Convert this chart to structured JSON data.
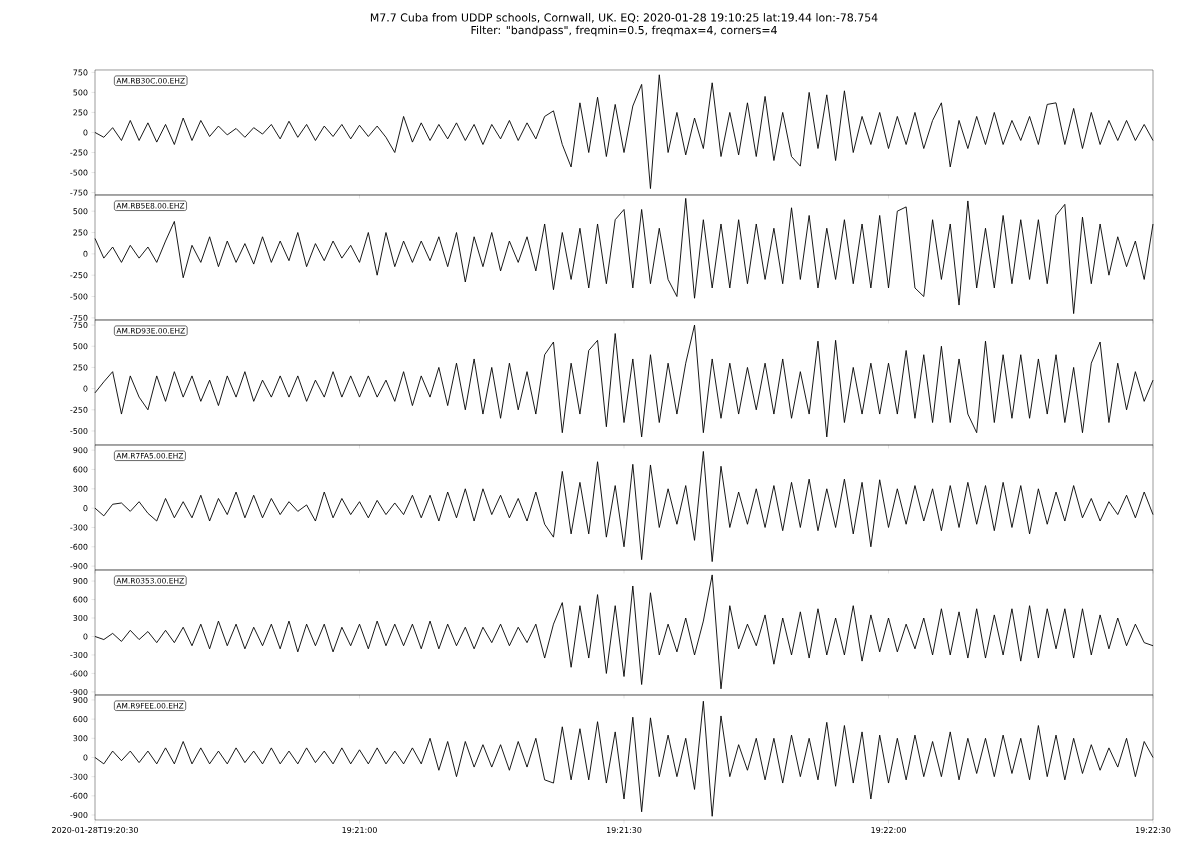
{
  "chart_data": [
    {
      "type": "line",
      "title": "M7.7 Cuba from UDDP schools, Cornwall, UK. EQ: 2020-01-28 19:10:25 lat:19.44 lon:-78.754",
      "subtitle": "Filter: \"bandpass\", freqmin=0.5, freqmax=4, corners=4",
      "annotations": [
        "AM.RB30C.00.EHZ"
      ],
      "color": "#000000",
      "tick_labels": "y",
      "x": [
        "2020-01-28T19:20:30",
        "2020-01-28T19:20:31",
        "2020-01-28T19:20:32",
        "2020-01-28T19:20:33",
        "2020-01-28T19:20:34",
        "2020-01-28T19:20:35",
        "2020-01-28T19:20:36",
        "2020-01-28T19:20:37",
        "2020-01-28T19:20:38",
        "2020-01-28T19:20:39",
        "2020-01-28T19:20:40",
        "2020-01-28T19:20:41",
        "2020-01-28T19:20:42",
        "2020-01-28T19:20:43",
        "2020-01-28T19:20:44",
        "2020-01-28T19:20:45",
        "2020-01-28T19:20:46",
        "2020-01-28T19:20:47",
        "2020-01-28T19:20:48",
        "2020-01-28T19:20:49",
        "2020-01-28T19:20:50",
        "2020-01-28T19:20:51",
        "2020-01-28T19:20:52",
        "2020-01-28T19:20:53",
        "2020-01-28T19:20:54",
        "2020-01-28T19:20:55",
        "2020-01-28T19:20:56",
        "2020-01-28T19:20:57",
        "2020-01-28T19:20:58",
        "2020-01-28T19:20:59",
        "2020-01-28T19:21:00",
        "2020-01-28T19:21:01",
        "2020-01-28T19:21:02",
        "2020-01-28T19:21:03",
        "2020-01-28T19:21:04",
        "2020-01-28T19:21:05",
        "2020-01-28T19:21:06",
        "2020-01-28T19:21:07",
        "2020-01-28T19:21:08",
        "2020-01-28T19:21:09",
        "2020-01-28T19:21:10",
        "2020-01-28T19:21:11",
        "2020-01-28T19:21:12",
        "2020-01-28T19:21:13",
        "2020-01-28T19:21:14",
        "2020-01-28T19:21:15",
        "2020-01-28T19:21:16",
        "2020-01-28T19:21:17",
        "2020-01-28T19:21:18",
        "2020-01-28T19:21:19",
        "2020-01-28T19:21:20",
        "2020-01-28T19:21:21",
        "2020-01-28T19:21:22",
        "2020-01-28T19:21:23",
        "2020-01-28T19:21:24",
        "2020-01-28T19:21:25",
        "2020-01-28T19:21:26",
        "2020-01-28T19:21:27",
        "2020-01-28T19:21:28",
        "2020-01-28T19:21:29",
        "2020-01-28T19:21:30",
        "2020-01-28T19:21:31",
        "2020-01-28T19:21:32",
        "2020-01-28T19:21:33",
        "2020-01-28T19:21:34",
        "2020-01-28T19:21:35",
        "2020-01-28T19:21:36",
        "2020-01-28T19:21:37",
        "2020-01-28T19:21:38",
        "2020-01-28T19:21:39",
        "2020-01-28T19:21:40",
        "2020-01-28T19:21:41",
        "2020-01-28T19:21:42",
        "2020-01-28T19:21:43",
        "2020-01-28T19:21:44",
        "2020-01-28T19:21:45",
        "2020-01-28T19:21:46",
        "2020-01-28T19:21:47",
        "2020-01-28T19:21:48",
        "2020-01-28T19:21:49",
        "2020-01-28T19:21:50",
        "2020-01-28T19:21:51",
        "2020-01-28T19:21:52",
        "2020-01-28T19:21:53",
        "2020-01-28T19:21:54",
        "2020-01-28T19:21:55",
        "2020-01-28T19:21:56",
        "2020-01-28T19:21:57",
        "2020-01-28T19:21:58",
        "2020-01-28T19:21:59",
        "2020-01-28T19:22:00",
        "2020-01-28T19:22:01",
        "2020-01-28T19:22:02",
        "2020-01-28T19:22:03",
        "2020-01-28T19:22:04",
        "2020-01-28T19:22:05",
        "2020-01-28T19:22:06",
        "2020-01-28T19:22:07",
        "2020-01-28T19:22:08",
        "2020-01-28T19:22:09",
        "2020-01-28T19:22:10",
        "2020-01-28T19:22:11",
        "2020-01-28T19:22:12",
        "2020-01-28T19:22:13",
        "2020-01-28T19:22:14",
        "2020-01-28T19:22:15",
        "2020-01-28T19:22:16",
        "2020-01-28T19:22:17",
        "2020-01-28T19:22:18",
        "2020-01-28T19:22:19",
        "2020-01-28T19:22:20",
        "2020-01-28T19:22:21",
        "2020-01-28T19:22:22",
        "2020-01-28T19:22:23",
        "2020-01-28T19:22:24",
        "2020-01-28T19:22:25",
        "2020-01-28T19:22:26",
        "2020-01-28T19:22:27",
        "2020-01-28T19:22:28",
        "2020-01-28T19:22:29",
        "2020-01-28T19:22:30"
      ],
      "values": [
        0,
        -60,
        60,
        -100,
        150,
        -100,
        120,
        -120,
        100,
        -150,
        180,
        -100,
        150,
        -50,
        80,
        -30,
        50,
        -60,
        60,
        -20,
        100,
        -80,
        140,
        -60,
        100,
        -100,
        80,
        -50,
        100,
        -80,
        90,
        -50,
        80,
        -60,
        -250,
        200,
        -120,
        120,
        -100,
        100,
        -80,
        120,
        -100,
        100,
        -150,
        100,
        -80,
        150,
        -100,
        120,
        -80,
        200,
        270,
        -150,
        -430,
        370,
        -250,
        440,
        -300,
        350,
        -250,
        330,
        600,
        -700,
        720,
        -250,
        250,
        -280,
        180,
        -200,
        620,
        -300,
        250,
        -280,
        370,
        -300,
        450,
        -350,
        250,
        -300,
        -420,
        500,
        -200,
        470,
        -350,
        520,
        -250,
        200,
        -150,
        250,
        -200,
        200,
        -150,
        250,
        -200,
        150,
        370,
        -430,
        150,
        -200,
        200,
        -150,
        250,
        -150,
        150,
        -100,
        200,
        -150,
        350,
        370,
        -150,
        300,
        -200,
        250,
        -150,
        150,
        -100,
        150,
        -100,
        100,
        -100
      ],
      "xlim": [
        "2020-01-28T19:20:30",
        "2020-01-28T19:22:30"
      ],
      "xticks": [
        "2020-01-28T19:20:30",
        "2020-01-28T19:21:00",
        "2020-01-28T19:21:30",
        "2020-01-28T19:22:00",
        "2020-01-28T19:22:30"
      ],
      "ylim": [
        -780,
        780
      ],
      "yticks": [
        -750,
        -500,
        -250,
        0,
        250,
        500,
        750
      ]
    },
    {
      "type": "line",
      "annotations": [
        "AM.RB5E8.00.EHZ"
      ],
      "color": "#000000",
      "tick_labels": "y",
      "x": [
        "2020-01-28T19:20:30",
        "2020-01-28T19:20:31",
        "2020-01-28T19:20:32",
        "2020-01-28T19:20:33",
        "2020-01-28T19:20:34",
        "2020-01-28T19:20:35",
        "2020-01-28T19:20:36",
        "2020-01-28T19:20:37",
        "2020-01-28T19:20:38",
        "2020-01-28T19:20:39",
        "2020-01-28T19:20:40",
        "2020-01-28T19:20:41",
        "2020-01-28T19:20:42",
        "2020-01-28T19:20:43",
        "2020-01-28T19:20:44",
        "2020-01-28T19:20:45",
        "2020-01-28T19:20:46",
        "2020-01-28T19:20:47",
        "2020-01-28T19:20:48",
        "2020-01-28T19:20:49",
        "2020-01-28T19:20:50",
        "2020-01-28T19:20:51",
        "2020-01-28T19:20:52",
        "2020-01-28T19:20:53",
        "2020-01-28T19:20:54",
        "2020-01-28T19:20:55",
        "2020-01-28T19:20:56",
        "2020-01-28T19:20:57",
        "2020-01-28T19:20:58",
        "2020-01-28T19:20:59",
        "2020-01-28T19:21:00",
        "2020-01-28T19:21:01",
        "2020-01-28T19:21:02",
        "2020-01-28T19:21:03",
        "2020-01-28T19:21:04",
        "2020-01-28T19:21:05",
        "2020-01-28T19:21:06",
        "2020-01-28T19:21:07",
        "2020-01-28T19:21:08",
        "2020-01-28T19:21:09",
        "2020-01-28T19:21:10",
        "2020-01-28T19:21:11",
        "2020-01-28T19:21:12",
        "2020-01-28T19:21:13",
        "2020-01-28T19:21:14",
        "2020-01-28T19:21:15",
        "2020-01-28T19:21:16",
        "2020-01-28T19:21:17",
        "2020-01-28T19:21:18",
        "2020-01-28T19:21:19",
        "2020-01-28T19:21:20",
        "2020-01-28T19:21:21",
        "2020-01-28T19:21:22",
        "2020-01-28T19:21:23",
        "2020-01-28T19:21:24",
        "2020-01-28T19:21:25",
        "2020-01-28T19:21:26",
        "2020-01-28T19:21:27",
        "2020-01-28T19:21:28",
        "2020-01-28T19:21:29",
        "2020-01-28T19:21:30",
        "2020-01-28T19:21:31",
        "2020-01-28T19:21:32",
        "2020-01-28T19:21:33",
        "2020-01-28T19:21:34",
        "2020-01-28T19:21:35",
        "2020-01-28T19:21:36",
        "2020-01-28T19:21:37",
        "2020-01-28T19:21:38",
        "2020-01-28T19:21:39",
        "2020-01-28T19:21:40",
        "2020-01-28T19:21:41",
        "2020-01-28T19:21:42",
        "2020-01-28T19:21:43",
        "2020-01-28T19:21:44",
        "2020-01-28T19:21:45",
        "2020-01-28T19:21:46",
        "2020-01-28T19:21:47",
        "2020-01-28T19:21:48",
        "2020-01-28T19:21:49",
        "2020-01-28T19:21:50",
        "2020-01-28T19:21:51",
        "2020-01-28T19:21:52",
        "2020-01-28T19:21:53",
        "2020-01-28T19:21:54",
        "2020-01-28T19:21:55",
        "2020-01-28T19:21:56",
        "2020-01-28T19:21:57",
        "2020-01-28T19:21:58",
        "2020-01-28T19:21:59",
        "2020-01-28T19:22:00",
        "2020-01-28T19:22:01",
        "2020-01-28T19:22:02",
        "2020-01-28T19:22:03",
        "2020-01-28T19:22:04",
        "2020-01-28T19:22:05",
        "2020-01-28T19:22:06",
        "2020-01-28T19:22:07",
        "2020-01-28T19:22:08",
        "2020-01-28T19:22:09",
        "2020-01-28T19:22:10",
        "2020-01-28T19:22:11",
        "2020-01-28T19:22:12",
        "2020-01-28T19:22:13",
        "2020-01-28T19:22:14",
        "2020-01-28T19:22:15",
        "2020-01-28T19:22:16",
        "2020-01-28T19:22:17",
        "2020-01-28T19:22:18",
        "2020-01-28T19:22:19",
        "2020-01-28T19:22:20",
        "2020-01-28T19:22:21",
        "2020-01-28T19:22:22",
        "2020-01-28T19:22:23",
        "2020-01-28T19:22:24",
        "2020-01-28T19:22:25",
        "2020-01-28T19:22:26",
        "2020-01-28T19:22:27",
        "2020-01-28T19:22:28",
        "2020-01-28T19:22:29",
        "2020-01-28T19:22:30"
      ],
      "values": [
        180,
        -50,
        80,
        -100,
        100,
        -50,
        80,
        -100,
        150,
        380,
        -280,
        100,
        -100,
        200,
        -150,
        150,
        -100,
        120,
        -120,
        200,
        -100,
        150,
        -80,
        250,
        -150,
        120,
        -80,
        150,
        -50,
        100,
        -100,
        250,
        -250,
        250,
        -150,
        150,
        -100,
        150,
        -80,
        200,
        -150,
        250,
        -330,
        200,
        -150,
        250,
        -200,
        150,
        -100,
        200,
        -200,
        350,
        -420,
        250,
        -300,
        300,
        -400,
        350,
        -350,
        400,
        520,
        -400,
        520,
        -350,
        300,
        -300,
        -500,
        650,
        -520,
        400,
        -400,
        350,
        -400,
        400,
        -350,
        350,
        -300,
        300,
        -350,
        540,
        -300,
        450,
        -400,
        300,
        -300,
        400,
        -350,
        350,
        -400,
        450,
        -400,
        500,
        550,
        -400,
        -500,
        400,
        -300,
        350,
        -600,
        620,
        -400,
        300,
        -400,
        450,
        -350,
        400,
        -300,
        400,
        -350,
        450,
        580,
        -700,
        430,
        -350,
        350,
        -250,
        200,
        -150,
        150,
        -300,
        350
      ],
      "xlim": [
        "2020-01-28T19:20:30",
        "2020-01-28T19:22:30"
      ],
      "xticks": [
        "2020-01-28T19:20:30",
        "2020-01-28T19:21:00",
        "2020-01-28T19:21:30",
        "2020-01-28T19:22:00",
        "2020-01-28T19:22:30"
      ],
      "ylim": [
        -775,
        690
      ],
      "yticks": [
        -750,
        -500,
        -250,
        0,
        250,
        500
      ]
    },
    {
      "type": "line",
      "annotations": [
        "AM.RD93E.00.EHZ"
      ],
      "color": "#000000",
      "tick_labels": "y",
      "x": [
        "2020-01-28T19:20:30",
        "2020-01-28T19:20:31",
        "2020-01-28T19:20:32",
        "2020-01-28T19:20:33",
        "2020-01-28T19:20:34",
        "2020-01-28T19:20:35",
        "2020-01-28T19:20:36",
        "2020-01-28T19:20:37",
        "2020-01-28T19:20:38",
        "2020-01-28T19:20:39",
        "2020-01-28T19:20:40",
        "2020-01-28T19:20:41",
        "2020-01-28T19:20:42",
        "2020-01-28T19:20:43",
        "2020-01-28T19:20:44",
        "2020-01-28T19:20:45",
        "2020-01-28T19:20:46",
        "2020-01-28T19:20:47",
        "2020-01-28T19:20:48",
        "2020-01-28T19:20:49",
        "2020-01-28T19:20:50",
        "2020-01-28T19:20:51",
        "2020-01-28T19:20:52",
        "2020-01-28T19:20:53",
        "2020-01-28T19:20:54",
        "2020-01-28T19:20:55",
        "2020-01-28T19:20:56",
        "2020-01-28T19:20:57",
        "2020-01-28T19:20:58",
        "2020-01-28T19:20:59",
        "2020-01-28T19:21:00",
        "2020-01-28T19:21:01",
        "2020-01-28T19:21:02",
        "2020-01-28T19:21:03",
        "2020-01-28T19:21:04",
        "2020-01-28T19:21:05",
        "2020-01-28T19:21:06",
        "2020-01-28T19:21:07",
        "2020-01-28T19:21:08",
        "2020-01-28T19:21:09",
        "2020-01-28T19:21:10",
        "2020-01-28T19:21:11",
        "2020-01-28T19:21:12",
        "2020-01-28T19:21:13",
        "2020-01-28T19:21:14",
        "2020-01-28T19:21:15",
        "2020-01-28T19:21:16",
        "2020-01-28T19:21:17",
        "2020-01-28T19:21:18",
        "2020-01-28T19:21:19",
        "2020-01-28T19:21:20",
        "2020-01-28T19:21:21",
        "2020-01-28T19:21:22",
        "2020-01-28T19:21:23",
        "2020-01-28T19:21:24",
        "2020-01-28T19:21:25",
        "2020-01-28T19:21:26",
        "2020-01-28T19:21:27",
        "2020-01-28T19:21:28",
        "2020-01-28T19:21:29",
        "2020-01-28T19:21:30",
        "2020-01-28T19:21:31",
        "2020-01-28T19:21:32",
        "2020-01-28T19:21:33",
        "2020-01-28T19:21:34",
        "2020-01-28T19:21:35",
        "2020-01-28T19:21:36",
        "2020-01-28T19:21:37",
        "2020-01-28T19:21:38",
        "2020-01-28T19:21:39",
        "2020-01-28T19:21:40",
        "2020-01-28T19:21:41",
        "2020-01-28T19:21:42",
        "2020-01-28T19:21:43",
        "2020-01-28T19:21:44",
        "2020-01-28T19:21:45",
        "2020-01-28T19:21:46",
        "2020-01-28T19:21:47",
        "2020-01-28T19:21:48",
        "2020-01-28T19:21:49",
        "2020-01-28T19:21:50",
        "2020-01-28T19:21:51",
        "2020-01-28T19:21:52",
        "2020-01-28T19:21:53",
        "2020-01-28T19:21:54",
        "2020-01-28T19:21:55",
        "2020-01-28T19:21:56",
        "2020-01-28T19:21:57",
        "2020-01-28T19:21:58",
        "2020-01-28T19:21:59",
        "2020-01-28T19:22:00",
        "2020-01-28T19:22:01",
        "2020-01-28T19:22:02",
        "2020-01-28T19:22:03",
        "2020-01-28T19:22:04",
        "2020-01-28T19:22:05",
        "2020-01-28T19:22:06",
        "2020-01-28T19:22:07",
        "2020-01-28T19:22:08",
        "2020-01-28T19:22:09",
        "2020-01-28T19:22:10",
        "2020-01-28T19:22:11",
        "2020-01-28T19:22:12",
        "2020-01-28T19:22:13",
        "2020-01-28T19:22:14",
        "2020-01-28T19:22:15",
        "2020-01-28T19:22:16",
        "2020-01-28T19:22:17",
        "2020-01-28T19:22:18",
        "2020-01-28T19:22:19",
        "2020-01-28T19:22:20",
        "2020-01-28T19:22:21",
        "2020-01-28T19:22:22",
        "2020-01-28T19:22:23",
        "2020-01-28T19:22:24",
        "2020-01-28T19:22:25",
        "2020-01-28T19:22:26",
        "2020-01-28T19:22:27",
        "2020-01-28T19:22:28",
        "2020-01-28T19:22:29",
        "2020-01-28T19:22:30"
      ],
      "values": [
        -50,
        80,
        200,
        -300,
        150,
        -100,
        -250,
        150,
        -150,
        200,
        -100,
        150,
        -150,
        100,
        -200,
        150,
        -100,
        200,
        -150,
        100,
        -100,
        150,
        -100,
        150,
        -150,
        100,
        -100,
        200,
        -100,
        150,
        -100,
        150,
        -100,
        100,
        -150,
        200,
        -200,
        150,
        -100,
        250,
        -200,
        300,
        -250,
        350,
        -300,
        250,
        -350,
        300,
        -250,
        200,
        -300,
        400,
        550,
        -520,
        300,
        -300,
        450,
        570,
        -450,
        650,
        -400,
        350,
        -570,
        400,
        -400,
        300,
        -300,
        300,
        750,
        -520,
        350,
        -350,
        300,
        -300,
        250,
        -250,
        300,
        -300,
        350,
        -350,
        200,
        -300,
        560,
        -570,
        570,
        -400,
        250,
        -300,
        300,
        -300,
        300,
        -300,
        450,
        -350,
        400,
        -400,
        500,
        -400,
        350,
        -300,
        -520,
        560,
        -400,
        400,
        -350,
        400,
        -350,
        350,
        -300,
        400,
        -400,
        250,
        -520,
        300,
        550,
        -400,
        300,
        -250,
        200,
        -150,
        100
      ],
      "xlim": [
        "2020-01-28T19:20:30",
        "2020-01-28T19:22:30"
      ],
      "xticks": [
        "2020-01-28T19:20:30",
        "2020-01-28T19:21:00",
        "2020-01-28T19:21:30",
        "2020-01-28T19:22:00",
        "2020-01-28T19:22:30"
      ],
      "ylim": [
        -665,
        810
      ],
      "yticks": [
        -500,
        -250,
        0,
        250,
        500,
        750
      ]
    },
    {
      "type": "line",
      "annotations": [
        "AM.R7FA5.00.EHZ"
      ],
      "color": "#000000",
      "tick_labels": "y",
      "x": [
        "2020-01-28T19:20:30",
        "2020-01-28T19:20:31",
        "2020-01-28T19:20:32",
        "2020-01-28T19:20:33",
        "2020-01-28T19:20:34",
        "2020-01-28T19:20:35",
        "2020-01-28T19:20:36",
        "2020-01-28T19:20:37",
        "2020-01-28T19:20:38",
        "2020-01-28T19:20:39",
        "2020-01-28T19:20:40",
        "2020-01-28T19:20:41",
        "2020-01-28T19:20:42",
        "2020-01-28T19:20:43",
        "2020-01-28T19:20:44",
        "2020-01-28T19:20:45",
        "2020-01-28T19:20:46",
        "2020-01-28T19:20:47",
        "2020-01-28T19:20:48",
        "2020-01-28T19:20:49",
        "2020-01-28T19:20:50",
        "2020-01-28T19:20:51",
        "2020-01-28T19:20:52",
        "2020-01-28T19:20:53",
        "2020-01-28T19:20:54",
        "2020-01-28T19:20:55",
        "2020-01-28T19:20:56",
        "2020-01-28T19:20:57",
        "2020-01-28T19:20:58",
        "2020-01-28T19:20:59",
        "2020-01-28T19:21:00",
        "2020-01-28T19:21:01",
        "2020-01-28T19:21:02",
        "2020-01-28T19:21:03",
        "2020-01-28T19:21:04",
        "2020-01-28T19:21:05",
        "2020-01-28T19:21:06",
        "2020-01-28T19:21:07",
        "2020-01-28T19:21:08",
        "2020-01-28T19:21:09",
        "2020-01-28T19:21:10",
        "2020-01-28T19:21:11",
        "2020-01-28T19:21:12",
        "2020-01-28T19:21:13",
        "2020-01-28T19:21:14",
        "2020-01-28T19:21:15",
        "2020-01-28T19:21:16",
        "2020-01-28T19:21:17",
        "2020-01-28T19:21:18",
        "2020-01-28T19:21:19",
        "2020-01-28T19:21:20",
        "2020-01-28T19:21:21",
        "2020-01-28T19:21:22",
        "2020-01-28T19:21:23",
        "2020-01-28T19:21:24",
        "2020-01-28T19:21:25",
        "2020-01-28T19:21:26",
        "2020-01-28T19:21:27",
        "2020-01-28T19:21:28",
        "2020-01-28T19:21:29",
        "2020-01-28T19:21:30",
        "2020-01-28T19:21:31",
        "2020-01-28T19:21:32",
        "2020-01-28T19:21:33",
        "2020-01-28T19:21:34",
        "2020-01-28T19:21:35",
        "2020-01-28T19:21:36",
        "2020-01-28T19:21:37",
        "2020-01-28T19:21:38",
        "2020-01-28T19:21:39",
        "2020-01-28T19:21:40",
        "2020-01-28T19:21:41",
        "2020-01-28T19:21:42",
        "2020-01-28T19:21:43",
        "2020-01-28T19:21:44",
        "2020-01-28T19:21:45",
        "2020-01-28T19:21:46",
        "2020-01-28T19:21:47",
        "2020-01-28T19:21:48",
        "2020-01-28T19:21:49",
        "2020-01-28T19:21:50",
        "2020-01-28T19:21:51",
        "2020-01-28T19:21:52",
        "2020-01-28T19:21:53",
        "2020-01-28T19:21:54",
        "2020-01-28T19:21:55",
        "2020-01-28T19:21:56",
        "2020-01-28T19:21:57",
        "2020-01-28T19:21:58",
        "2020-01-28T19:21:59",
        "2020-01-28T19:22:00",
        "2020-01-28T19:22:01",
        "2020-01-28T19:22:02",
        "2020-01-28T19:22:03",
        "2020-01-28T19:22:04",
        "2020-01-28T19:22:05",
        "2020-01-28T19:22:06",
        "2020-01-28T19:22:07",
        "2020-01-28T19:22:08",
        "2020-01-28T19:22:09",
        "2020-01-28T19:22:10",
        "2020-01-28T19:22:11",
        "2020-01-28T19:22:12",
        "2020-01-28T19:22:13",
        "2020-01-28T19:22:14",
        "2020-01-28T19:22:15",
        "2020-01-28T19:22:16",
        "2020-01-28T19:22:17",
        "2020-01-28T19:22:18",
        "2020-01-28T19:22:19",
        "2020-01-28T19:22:20",
        "2020-01-28T19:22:21",
        "2020-01-28T19:22:22",
        "2020-01-28T19:22:23",
        "2020-01-28T19:22:24",
        "2020-01-28T19:22:25",
        "2020-01-28T19:22:26",
        "2020-01-28T19:22:27",
        "2020-01-28T19:22:28",
        "2020-01-28T19:22:29",
        "2020-01-28T19:22:30"
      ],
      "values": [
        0,
        -120,
        60,
        80,
        -50,
        100,
        -80,
        -200,
        150,
        -150,
        100,
        -150,
        200,
        -200,
        150,
        -100,
        250,
        -150,
        200,
        -150,
        150,
        -100,
        100,
        -50,
        50,
        -200,
        250,
        -150,
        150,
        -100,
        100,
        -150,
        120,
        -100,
        80,
        -100,
        200,
        -150,
        200,
        -200,
        250,
        -150,
        300,
        -200,
        300,
        -100,
        200,
        -150,
        150,
        -200,
        250,
        -250,
        -450,
        570,
        -400,
        400,
        -400,
        720,
        -450,
        350,
        -600,
        680,
        -800,
        670,
        -300,
        300,
        -250,
        350,
        -500,
        880,
        -830,
        650,
        -300,
        250,
        -250,
        300,
        -300,
        350,
        -350,
        400,
        -300,
        450,
        -350,
        300,
        -300,
        450,
        -400,
        400,
        -600,
        440,
        -300,
        300,
        -250,
        350,
        -200,
        300,
        -350,
        350,
        -300,
        400,
        -250,
        350,
        -350,
        400,
        -300,
        350,
        -400,
        300,
        -250,
        250,
        -200,
        350,
        -150,
        150,
        -200,
        100,
        -100,
        200,
        -150,
        250,
        -100
      ],
      "xlim": [
        "2020-01-28T19:20:30",
        "2020-01-28T19:22:30"
      ],
      "xticks": [
        "2020-01-28T19:20:30",
        "2020-01-28T19:21:00",
        "2020-01-28T19:21:30",
        "2020-01-28T19:22:00",
        "2020-01-28T19:22:30"
      ],
      "ylim": [
        -960,
        980
      ],
      "yticks": [
        -900,
        -600,
        -300,
        0,
        300,
        600,
        900
      ]
    },
    {
      "type": "line",
      "annotations": [
        "AM.R0353.00.EHZ"
      ],
      "color": "#000000",
      "tick_labels": "y",
      "x": [
        "2020-01-28T19:20:30",
        "2020-01-28T19:20:31",
        "2020-01-28T19:20:32",
        "2020-01-28T19:20:33",
        "2020-01-28T19:20:34",
        "2020-01-28T19:20:35",
        "2020-01-28T19:20:36",
        "2020-01-28T19:20:37",
        "2020-01-28T19:20:38",
        "2020-01-28T19:20:39",
        "2020-01-28T19:20:40",
        "2020-01-28T19:20:41",
        "2020-01-28T19:20:42",
        "2020-01-28T19:20:43",
        "2020-01-28T19:20:44",
        "2020-01-28T19:20:45",
        "2020-01-28T19:20:46",
        "2020-01-28T19:20:47",
        "2020-01-28T19:20:48",
        "2020-01-28T19:20:49",
        "2020-01-28T19:20:50",
        "2020-01-28T19:20:51",
        "2020-01-28T19:20:52",
        "2020-01-28T19:20:53",
        "2020-01-28T19:20:54",
        "2020-01-28T19:20:55",
        "2020-01-28T19:20:56",
        "2020-01-28T19:20:57",
        "2020-01-28T19:20:58",
        "2020-01-28T19:20:59",
        "2020-01-28T19:21:00",
        "2020-01-28T19:21:01",
        "2020-01-28T19:21:02",
        "2020-01-28T19:21:03",
        "2020-01-28T19:21:04",
        "2020-01-28T19:21:05",
        "2020-01-28T19:21:06",
        "2020-01-28T19:21:07",
        "2020-01-28T19:21:08",
        "2020-01-28T19:21:09",
        "2020-01-28T19:21:10",
        "2020-01-28T19:21:11",
        "2020-01-28T19:21:12",
        "2020-01-28T19:21:13",
        "2020-01-28T19:21:14",
        "2020-01-28T19:21:15",
        "2020-01-28T19:21:16",
        "2020-01-28T19:21:17",
        "2020-01-28T19:21:18",
        "2020-01-28T19:21:19",
        "2020-01-28T19:21:20",
        "2020-01-28T19:21:21",
        "2020-01-28T19:21:22",
        "2020-01-28T19:21:23",
        "2020-01-28T19:21:24",
        "2020-01-28T19:21:25",
        "2020-01-28T19:21:26",
        "2020-01-28T19:21:27",
        "2020-01-28T19:21:28",
        "2020-01-28T19:21:29",
        "2020-01-28T19:21:30",
        "2020-01-28T19:21:31",
        "2020-01-28T19:21:32",
        "2020-01-28T19:21:33",
        "2020-01-28T19:21:34",
        "2020-01-28T19:21:35",
        "2020-01-28T19:21:36",
        "2020-01-28T19:21:37",
        "2020-01-28T19:21:38",
        "2020-01-28T19:21:39",
        "2020-01-28T19:21:40",
        "2020-01-28T19:21:41",
        "2020-01-28T19:21:42",
        "2020-01-28T19:21:43",
        "2020-01-28T19:21:44",
        "2020-01-28T19:21:45",
        "2020-01-28T19:21:46",
        "2020-01-28T19:21:47",
        "2020-01-28T19:21:48",
        "2020-01-28T19:21:49",
        "2020-01-28T19:21:50",
        "2020-01-28T19:21:51",
        "2020-01-28T19:21:52",
        "2020-01-28T19:21:53",
        "2020-01-28T19:21:54",
        "2020-01-28T19:21:55",
        "2020-01-28T19:21:56",
        "2020-01-28T19:21:57",
        "2020-01-28T19:21:58",
        "2020-01-28T19:21:59",
        "2020-01-28T19:22:00",
        "2020-01-28T19:22:01",
        "2020-01-28T19:22:02",
        "2020-01-28T19:22:03",
        "2020-01-28T19:22:04",
        "2020-01-28T19:22:05",
        "2020-01-28T19:22:06",
        "2020-01-28T19:22:07",
        "2020-01-28T19:22:08",
        "2020-01-28T19:22:09",
        "2020-01-28T19:22:10",
        "2020-01-28T19:22:11",
        "2020-01-28T19:22:12",
        "2020-01-28T19:22:13",
        "2020-01-28T19:22:14",
        "2020-01-28T19:22:15",
        "2020-01-28T19:22:16",
        "2020-01-28T19:22:17",
        "2020-01-28T19:22:18",
        "2020-01-28T19:22:19",
        "2020-01-28T19:22:20",
        "2020-01-28T19:22:21",
        "2020-01-28T19:22:22",
        "2020-01-28T19:22:23",
        "2020-01-28T19:22:24",
        "2020-01-28T19:22:25",
        "2020-01-28T19:22:26",
        "2020-01-28T19:22:27",
        "2020-01-28T19:22:28",
        "2020-01-28T19:22:29",
        "2020-01-28T19:22:30"
      ],
      "values": [
        0,
        -50,
        50,
        -80,
        100,
        -50,
        80,
        -100,
        100,
        -100,
        150,
        -150,
        200,
        -200,
        250,
        -150,
        200,
        -200,
        150,
        -150,
        200,
        -200,
        250,
        -250,
        200,
        -150,
        200,
        -250,
        150,
        -150,
        200,
        -200,
        250,
        -150,
        200,
        -150,
        200,
        -200,
        250,
        -200,
        200,
        -150,
        150,
        -200,
        150,
        -100,
        200,
        -150,
        150,
        -100,
        200,
        -350,
        200,
        550,
        -500,
        500,
        -350,
        680,
        -600,
        500,
        -650,
        820,
        -780,
        710,
        -300,
        200,
        -250,
        300,
        -300,
        250,
        1000,
        -850,
        500,
        -200,
        200,
        -150,
        350,
        -450,
        300,
        -300,
        400,
        -350,
        450,
        -300,
        300,
        -300,
        500,
        -400,
        350,
        -250,
        300,
        -250,
        200,
        -200,
        300,
        -300,
        450,
        -300,
        400,
        -350,
        450,
        -350,
        350,
        -300,
        450,
        -400,
        500,
        -350,
        450,
        -200,
        450,
        -350,
        450,
        -300,
        350,
        -200,
        300,
        -150,
        200,
        -100,
        -150
      ],
      "xlim": [
        "2020-01-28T19:20:30",
        "2020-01-28T19:22:30"
      ],
      "xticks": [
        "2020-01-28T19:20:30",
        "2020-01-28T19:21:00",
        "2020-01-28T19:21:30",
        "2020-01-28T19:22:00",
        "2020-01-28T19:22:30"
      ],
      "ylim": [
        -950,
        1080
      ],
      "yticks": [
        -900,
        -600,
        -300,
        0,
        300,
        600,
        900
      ]
    },
    {
      "type": "line",
      "annotations": [
        "AM.R9FEE.00.EHZ"
      ],
      "color": "#000000",
      "x": [
        "2020-01-28T19:20:30",
        "2020-01-28T19:20:31",
        "2020-01-28T19:20:32",
        "2020-01-28T19:20:33",
        "2020-01-28T19:20:34",
        "2020-01-28T19:20:35",
        "2020-01-28T19:20:36",
        "2020-01-28T19:20:37",
        "2020-01-28T19:20:38",
        "2020-01-28T19:20:39",
        "2020-01-28T19:20:40",
        "2020-01-28T19:20:41",
        "2020-01-28T19:20:42",
        "2020-01-28T19:20:43",
        "2020-01-28T19:20:44",
        "2020-01-28T19:20:45",
        "2020-01-28T19:20:46",
        "2020-01-28T19:20:47",
        "2020-01-28T19:20:48",
        "2020-01-28T19:20:49",
        "2020-01-28T19:20:50",
        "2020-01-28T19:20:51",
        "2020-01-28T19:20:52",
        "2020-01-28T19:20:53",
        "2020-01-28T19:20:54",
        "2020-01-28T19:20:55",
        "2020-01-28T19:20:56",
        "2020-01-28T19:20:57",
        "2020-01-28T19:20:58",
        "2020-01-28T19:20:59",
        "2020-01-28T19:21:00",
        "2020-01-28T19:21:01",
        "2020-01-28T19:21:02",
        "2020-01-28T19:21:03",
        "2020-01-28T19:21:04",
        "2020-01-28T19:21:05",
        "2020-01-28T19:21:06",
        "2020-01-28T19:21:07",
        "2020-01-28T19:21:08",
        "2020-01-28T19:21:09",
        "2020-01-28T19:21:10",
        "2020-01-28T19:21:11",
        "2020-01-28T19:21:12",
        "2020-01-28T19:21:13",
        "2020-01-28T19:21:14",
        "2020-01-28T19:21:15",
        "2020-01-28T19:21:16",
        "2020-01-28T19:21:17",
        "2020-01-28T19:21:18",
        "2020-01-28T19:21:19",
        "2020-01-28T19:21:20",
        "2020-01-28T19:21:21",
        "2020-01-28T19:21:22",
        "2020-01-28T19:21:23",
        "2020-01-28T19:21:24",
        "2020-01-28T19:21:25",
        "2020-01-28T19:21:26",
        "2020-01-28T19:21:27",
        "2020-01-28T19:21:28",
        "2020-01-28T19:21:29",
        "2020-01-28T19:21:30",
        "2020-01-28T19:21:31",
        "2020-01-28T19:21:32",
        "2020-01-28T19:21:33",
        "2020-01-28T19:21:34",
        "2020-01-28T19:21:35",
        "2020-01-28T19:21:36",
        "2020-01-28T19:21:37",
        "2020-01-28T19:21:38",
        "2020-01-28T19:21:39",
        "2020-01-28T19:21:40",
        "2020-01-28T19:21:41",
        "2020-01-28T19:21:42",
        "2020-01-28T19:21:43",
        "2020-01-28T19:21:44",
        "2020-01-28T19:21:45",
        "2020-01-28T19:21:46",
        "2020-01-28T19:21:47",
        "2020-01-28T19:21:48",
        "2020-01-28T19:21:49",
        "2020-01-28T19:21:50",
        "2020-01-28T19:21:51",
        "2020-01-28T19:21:52",
        "2020-01-28T19:21:53",
        "2020-01-28T19:21:54",
        "2020-01-28T19:21:55",
        "2020-01-28T19:21:56",
        "2020-01-28T19:21:57",
        "2020-01-28T19:21:58",
        "2020-01-28T19:21:59",
        "2020-01-28T19:22:00",
        "2020-01-28T19:22:01",
        "2020-01-28T19:22:02",
        "2020-01-28T19:22:03",
        "2020-01-28T19:22:04",
        "2020-01-28T19:22:05",
        "2020-01-28T19:22:06",
        "2020-01-28T19:22:07",
        "2020-01-28T19:22:08",
        "2020-01-28T19:22:09",
        "2020-01-28T19:22:10",
        "2020-01-28T19:22:11",
        "2020-01-28T19:22:12",
        "2020-01-28T19:22:13",
        "2020-01-28T19:22:14",
        "2020-01-28T19:22:15",
        "2020-01-28T19:22:16",
        "2020-01-28T19:22:17",
        "2020-01-28T19:22:18",
        "2020-01-28T19:22:19",
        "2020-01-28T19:22:20",
        "2020-01-28T19:22:21",
        "2020-01-28T19:22:22",
        "2020-01-28T19:22:23",
        "2020-01-28T19:22:24",
        "2020-01-28T19:22:25",
        "2020-01-28T19:22:26",
        "2020-01-28T19:22:27",
        "2020-01-28T19:22:28",
        "2020-01-28T19:22:29",
        "2020-01-28T19:22:30"
      ],
      "values": [
        0,
        -100,
        100,
        -50,
        100,
        -80,
        100,
        -100,
        150,
        -100,
        250,
        -100,
        150,
        -100,
        100,
        -100,
        150,
        -80,
        100,
        -100,
        150,
        -100,
        100,
        -100,
        150,
        -80,
        100,
        -100,
        150,
        -100,
        120,
        -100,
        150,
        -100,
        100,
        -100,
        150,
        -100,
        300,
        -200,
        250,
        -300,
        250,
        -150,
        200,
        -150,
        200,
        -200,
        250,
        -150,
        300,
        -350,
        -400,
        480,
        -350,
        450,
        -350,
        560,
        -400,
        400,
        -650,
        630,
        -850,
        620,
        -300,
        350,
        -300,
        300,
        -500,
        880,
        -920,
        650,
        -300,
        200,
        -200,
        300,
        -350,
        300,
        -400,
        350,
        -300,
        300,
        -350,
        550,
        -450,
        500,
        -400,
        400,
        -650,
        350,
        -400,
        300,
        -350,
        350,
        -300,
        250,
        -300,
        400,
        -350,
        300,
        -250,
        300,
        -300,
        350,
        -250,
        300,
        -350,
        500,
        -300,
        350,
        -350,
        300,
        -250,
        200,
        -200,
        150,
        -150,
        300,
        -300,
        250,
        0
      ],
      "xlim": [
        "2020-01-28T19:20:30",
        "2020-01-28T19:22:30"
      ],
      "xticks": [
        {
          "value": "2020-01-28T19:20:30",
          "label": "2020-01-28T19:20:30"
        },
        {
          "value": "2020-01-28T19:21:00",
          "label": "19:21:00"
        },
        {
          "value": "2020-01-28T19:21:30",
          "label": "19:21:30"
        },
        {
          "value": "2020-01-28T19:22:00",
          "label": "19:22:00"
        },
        {
          "value": "2020-01-28T19:22:30",
          "label": "19:22:30"
        }
      ],
      "ylim": [
        -978,
        978
      ],
      "yticks": [
        -900,
        -600,
        -300,
        0,
        300,
        600,
        900
      ]
    }
  ]
}
